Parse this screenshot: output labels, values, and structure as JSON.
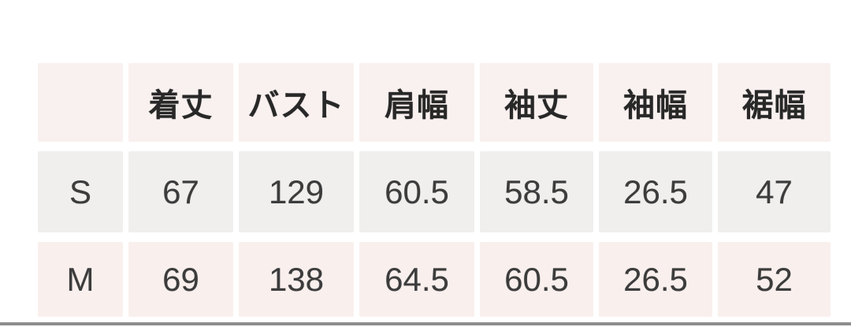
{
  "size_chart": {
    "corner_label": "",
    "columns": [
      "着丈",
      "バスト",
      "肩幅",
      "袖丈",
      "袖幅",
      "裾幅"
    ],
    "rows": [
      {
        "size": "S",
        "values": [
          "67",
          "129",
          "60.5",
          "58.5",
          "26.5",
          "47"
        ]
      },
      {
        "size": "M",
        "values": [
          "69",
          "138",
          "64.5",
          "60.5",
          "26.5",
          "52"
        ]
      }
    ],
    "colors": {
      "background": "#ffffff",
      "header_cell": "#f9f1ef",
      "row_s_cell": "#f0efee",
      "row_m_cell": "#f9f0ee",
      "gap": "#ffffff",
      "header_text": "#282828",
      "value_text": "#3c3c3c",
      "bottom_line": "#8d8d8d"
    }
  },
  "chart_data": {
    "type": "table",
    "columns": [
      "",
      "着丈",
      "バスト",
      "肩幅",
      "袖丈",
      "袖幅",
      "裾幅"
    ],
    "rows": [
      [
        "S",
        67,
        129,
        60.5,
        58.5,
        26.5,
        47
      ],
      [
        "M",
        69,
        138,
        64.5,
        60.5,
        26.5,
        52
      ]
    ],
    "layout": {
      "grid": false,
      "cell_gaps": true,
      "first_column_is_size_label": true
    }
  }
}
